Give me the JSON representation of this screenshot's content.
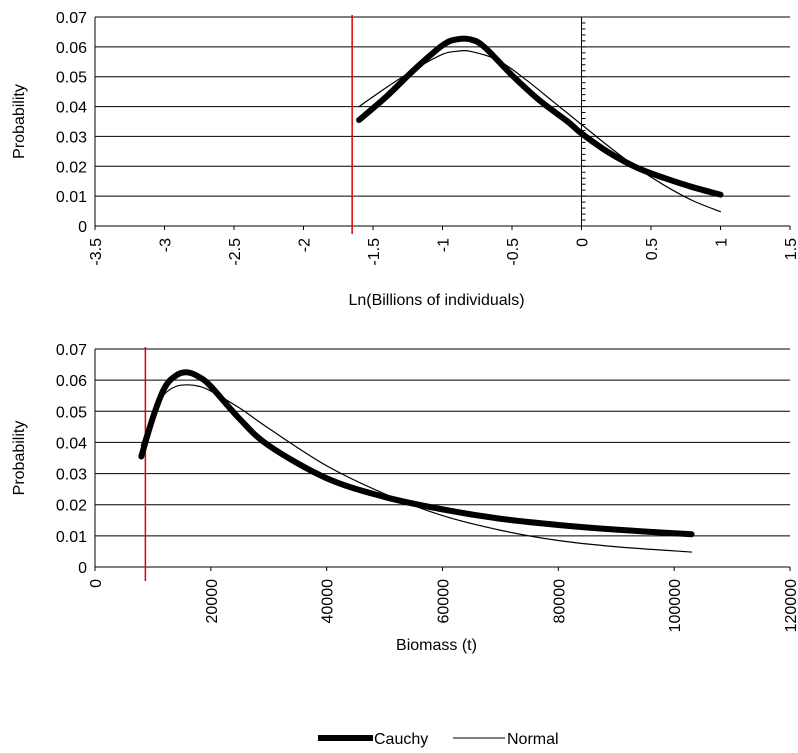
{
  "chart_data": [
    {
      "type": "line",
      "xlabel": "Ln(Billions of individuals)",
      "ylabel": "Probability",
      "xlim": [
        -3.5,
        1.5
      ],
      "ylim": [
        0,
        0.07
      ],
      "xticks": [
        "-3.5",
        "-3",
        "-2.5",
        "-2",
        "-1.5",
        "-1",
        "-0.5",
        "0",
        "0.5",
        "1",
        "1.5"
      ],
      "yticks": [
        "0",
        "0.01",
        "0.02",
        "0.03",
        "0.04",
        "0.05",
        "0.06",
        "0.07"
      ],
      "grid": true,
      "vertical_marker": {
        "x": -1.65,
        "color": "#dd0000"
      },
      "zero_axis": {
        "x": 0
      },
      "series": [
        {
          "name": "Cauchy",
          "x": [
            -1.6,
            -1.4,
            -1.2,
            -1.0,
            -0.9,
            -0.8,
            -0.7,
            -0.5,
            -0.3,
            -0.1,
            0.0,
            0.2,
            0.4,
            0.6,
            0.8,
            1.0
          ],
          "y": [
            0.0355,
            0.0435,
            0.0525,
            0.0605,
            0.0625,
            0.0625,
            0.06,
            0.0505,
            0.042,
            0.035,
            0.031,
            0.0245,
            0.0195,
            0.016,
            0.013,
            0.0105
          ]
        },
        {
          "name": "Normal",
          "x": [
            -1.6,
            -1.4,
            -1.2,
            -1.0,
            -0.9,
            -0.8,
            -0.6,
            -0.4,
            -0.2,
            0.0,
            0.2,
            0.4,
            0.6,
            0.8,
            1.0
          ],
          "y": [
            0.04,
            0.0465,
            0.0525,
            0.0575,
            0.0585,
            0.0585,
            0.0555,
            0.049,
            0.0415,
            0.034,
            0.0265,
            0.0195,
            0.0135,
            0.0085,
            0.0048
          ]
        }
      ]
    },
    {
      "type": "line",
      "xlabel": "Biomass (t)",
      "ylabel": "Probability",
      "xlim": [
        0,
        120000
      ],
      "ylim": [
        0,
        0.07
      ],
      "xticks": [
        "0",
        "20000",
        "40000",
        "60000",
        "80000",
        "100000",
        "120000"
      ],
      "yticks": [
        "0",
        "0.01",
        "0.02",
        "0.03",
        "0.04",
        "0.05",
        "0.06",
        "0.07"
      ],
      "grid": true,
      "vertical_marker": {
        "x": 8700,
        "color": "#dd0000"
      },
      "series": [
        {
          "name": "Cauchy",
          "x": [
            8000,
            10000,
            12000,
            14000,
            16000,
            18000,
            20000,
            25000,
            30000,
            40000,
            50000,
            60000,
            70000,
            80000,
            90000,
            103000
          ],
          "y": [
            0.0355,
            0.048,
            0.0575,
            0.0615,
            0.0625,
            0.061,
            0.058,
            0.0475,
            0.039,
            0.0285,
            0.0225,
            0.0185,
            0.0155,
            0.0135,
            0.012,
            0.0105
          ]
        },
        {
          "name": "Normal",
          "x": [
            8000,
            10000,
            12000,
            14000,
            16000,
            18000,
            20000,
            25000,
            30000,
            40000,
            50000,
            60000,
            70000,
            80000,
            90000,
            103000
          ],
          "y": [
            0.039,
            0.0495,
            0.0555,
            0.058,
            0.0585,
            0.058,
            0.0565,
            0.051,
            0.0445,
            0.0325,
            0.0235,
            0.0165,
            0.0118,
            0.0085,
            0.0065,
            0.0048
          ]
        }
      ]
    }
  ],
  "legend": {
    "placement": "bottom",
    "items": [
      {
        "name": "Cauchy",
        "style": "thick"
      },
      {
        "name": "Normal",
        "style": "thin"
      }
    ]
  }
}
